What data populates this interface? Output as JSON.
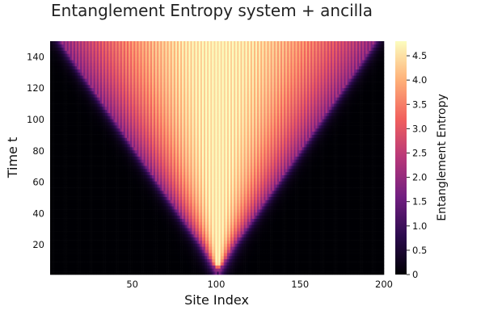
{
  "chart_data": {
    "type": "heatmap",
    "title": "Entanglement Entropy system + ancilla",
    "xlabel": "Site Index",
    "ylabel": "Time t",
    "colorbar_label": "Entanglement Entropy",
    "x_range": [
      1,
      200
    ],
    "y_range": [
      1,
      150
    ],
    "x_ticks": [
      50,
      100,
      150,
      200
    ],
    "y_ticks": [
      20,
      40,
      60,
      80,
      100,
      120,
      140
    ],
    "colorbar_range": [
      0,
      4.8
    ],
    "colorbar_ticks": [
      "0",
      "0.5",
      "1.0",
      "1.5",
      "2.0",
      "2.5",
      "3.0",
      "3.5",
      "4.0",
      "4.5"
    ],
    "colormap": "magma",
    "colormap_stops": [
      "#000004",
      "#2c0b4e",
      "#721f81",
      "#b73779",
      "#f1605d",
      "#feb078",
      "#fcfdbf"
    ],
    "light_cone": {
      "center_site": 101,
      "left_edge": [
        [
          1,
          101
        ],
        [
          20,
          91
        ],
        [
          40,
          78
        ],
        [
          60,
          65
        ],
        [
          80,
          52
        ],
        [
          100,
          39
        ],
        [
          120,
          26
        ],
        [
          140,
          13
        ],
        [
          150,
          7
        ]
      ],
      "right_edge": [
        [
          1,
          101
        ],
        [
          20,
          111
        ],
        [
          40,
          124
        ],
        [
          60,
          137
        ],
        [
          80,
          150
        ],
        [
          100,
          163
        ],
        [
          120,
          176
        ],
        [
          140,
          189
        ],
        [
          150,
          195
        ]
      ]
    },
    "interior_entropy": {
      "near_center": 4.7,
      "near_edge": 1.9,
      "even_odd_modulation": 0.3
    },
    "grid": false,
    "legend": "colorbar-right"
  }
}
